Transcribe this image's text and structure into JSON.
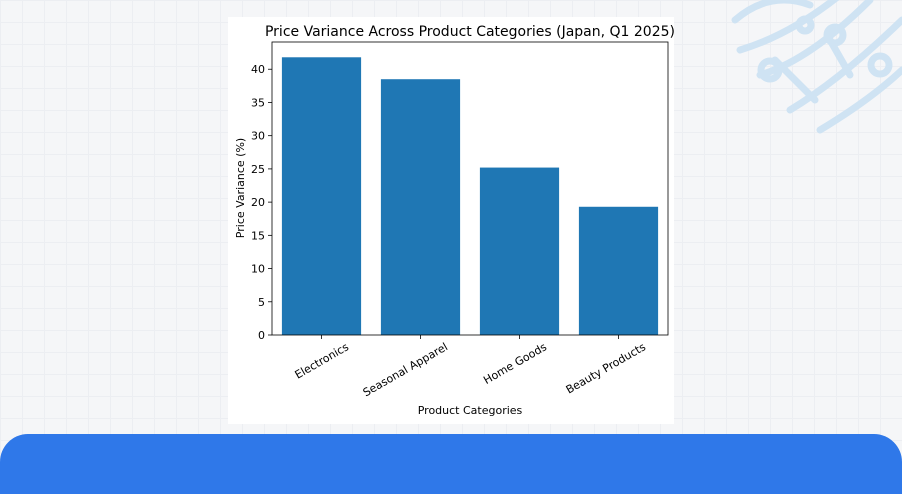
{
  "colors": {
    "bar": "#1f77b4",
    "bottom_bar": "#2f78e9",
    "decoration": "#cfe3f3"
  },
  "decoration_icon": "circuit-leaf-icon",
  "chart_data": {
    "type": "bar",
    "title": "Price Variance Across Product Categories (Japan, Q1 2025)",
    "xlabel": "Product Categories",
    "ylabel": "Price Variance (%)",
    "categories": [
      "Electronics",
      "Seasonal Apparel",
      "Home Goods",
      "Beauty Products"
    ],
    "values": [
      41.8,
      38.5,
      25.2,
      19.3
    ],
    "ylim": [
      0,
      44.1
    ],
    "yticks": [
      0,
      5,
      10,
      15,
      20,
      25,
      30,
      35,
      40
    ],
    "grid": false,
    "legend": "none"
  }
}
